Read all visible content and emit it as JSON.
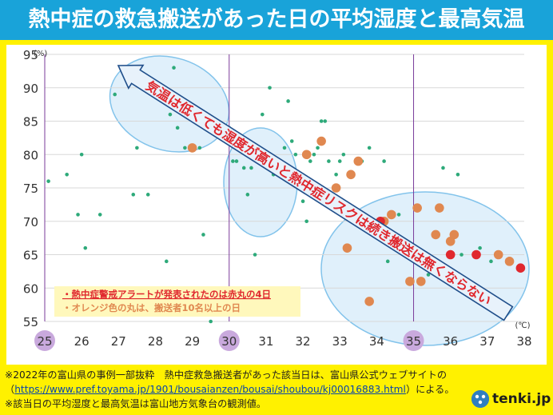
{
  "title": "熱中症の救急搬送があった日の平均湿度と最高気温",
  "chart_data": {
    "type": "scatter",
    "title": "熱中症の救急搬送があった日の平均湿度と最高気温",
    "xlabel": "(℃)",
    "ylabel": "(%)",
    "xlim": [
      25,
      38
    ],
    "ylim": [
      55,
      95
    ],
    "x_ticks": [
      "25",
      "26",
      "27",
      "28",
      "29",
      "30",
      "31",
      "32",
      "33",
      "34",
      "35",
      "36",
      "37",
      "38"
    ],
    "y_ticks": [
      "55",
      "60",
      "65",
      "70",
      "75",
      "80",
      "85",
      "90",
      "95"
    ],
    "highlighted_x_ticks": [
      "25",
      "30",
      "35"
    ],
    "vertical_lines_at": [
      30,
      35
    ],
    "series": [
      {
        "color": "#2eaa7a",
        "points": [
          [
            25.1,
            76
          ],
          [
            25.6,
            77
          ],
          [
            25.9,
            71
          ],
          [
            26.0,
            80
          ],
          [
            26.1,
            66
          ],
          [
            26.5,
            71
          ],
          [
            26.9,
            89
          ],
          [
            27.4,
            74
          ],
          [
            27.5,
            81
          ],
          [
            27.6,
            92
          ],
          [
            27.7,
            91
          ],
          [
            27.8,
            74
          ],
          [
            28.2,
            90
          ],
          [
            28.3,
            64
          ],
          [
            28.4,
            86
          ],
          [
            28.5,
            93
          ],
          [
            28.6,
            84
          ],
          [
            28.7,
            87
          ],
          [
            28.8,
            81
          ],
          [
            29.2,
            81
          ],
          [
            29.3,
            68
          ],
          [
            29.5,
            55
          ],
          [
            29.7,
            85
          ],
          [
            29.8,
            84
          ],
          [
            30.0,
            84
          ],
          [
            30.1,
            79
          ],
          [
            30.2,
            79
          ],
          [
            30.3,
            82
          ],
          [
            30.4,
            78
          ],
          [
            30.5,
            74
          ],
          [
            30.6,
            78
          ],
          [
            30.7,
            65
          ],
          [
            30.8,
            81
          ],
          [
            30.9,
            86
          ],
          [
            31.0,
            80
          ],
          [
            31.1,
            90
          ],
          [
            31.2,
            77
          ],
          [
            31.3,
            79
          ],
          [
            31.4,
            77
          ],
          [
            31.5,
            81
          ],
          [
            31.6,
            88
          ],
          [
            31.7,
            82
          ],
          [
            31.8,
            80
          ],
          [
            31.9,
            76
          ],
          [
            32.0,
            73
          ],
          [
            32.1,
            70
          ],
          [
            32.2,
            79
          ],
          [
            32.3,
            80
          ],
          [
            32.4,
            81
          ],
          [
            32.5,
            85
          ],
          [
            32.6,
            85
          ],
          [
            32.7,
            79
          ],
          [
            32.9,
            77
          ],
          [
            33.0,
            79
          ],
          [
            33.1,
            80
          ],
          [
            33.3,
            77
          ],
          [
            33.6,
            79
          ],
          [
            33.8,
            81
          ],
          [
            34.2,
            79
          ],
          [
            34.3,
            64
          ],
          [
            34.6,
            71
          ],
          [
            35.4,
            62
          ],
          [
            35.8,
            78
          ],
          [
            36.2,
            77
          ],
          [
            36.3,
            65
          ],
          [
            36.8,
            66
          ],
          [
            37.1,
            64
          ]
        ]
      },
      {
        "color": "#e08850",
        "points": [
          [
            29.0,
            81
          ],
          [
            32.1,
            80
          ],
          [
            32.5,
            82
          ],
          [
            32.9,
            75
          ],
          [
            33.2,
            66
          ],
          [
            33.3,
            77
          ],
          [
            33.5,
            79
          ],
          [
            33.8,
            58
          ],
          [
            34.2,
            70
          ],
          [
            34.4,
            71
          ],
          [
            34.9,
            61
          ],
          [
            35.1,
            72
          ],
          [
            35.2,
            61
          ],
          [
            35.6,
            68
          ],
          [
            35.7,
            72
          ],
          [
            36.0,
            67
          ],
          [
            36.1,
            68
          ],
          [
            36.9,
            58
          ],
          [
            37.2,
            57
          ],
          [
            37.3,
            65
          ],
          [
            37.6,
            64
          ]
        ]
      },
      {
        "color": "#e0282e",
        "points": [
          [
            34.1,
            70
          ],
          [
            36.0,
            65
          ],
          [
            36.7,
            65
          ],
          [
            37.9,
            63
          ]
        ]
      }
    ],
    "arrow_text": "気温は低くても湿度が高いと熱中症リスクは続き搬送は無くならない",
    "legend": {
      "line1": "・熱中症警戒アラートが発表されたのは赤丸の4日",
      "line2": "・オレンジ色の丸は、搬送者10名以上の日",
      "line1_color": "#e0282e",
      "line2_color": "#e08850"
    }
  },
  "footer": {
    "line1": "※2022年の富山県の事例一部抜粋　熱中症救急搬送者があった該当日は、富山県公式ウェブサイトの",
    "line2_prefix": "（",
    "line2_link": "https://www.pref.toyama.jp/1901/bousaianzen/bousai/shoubou/kj00016883.html",
    "line2_suffix": "）による。",
    "line3": "※該当日の平均湿度と最高気温は富山地方気象台の観測値。"
  },
  "logo": {
    "text": "tenki.jp",
    "icon": "tenki-logo-icon"
  },
  "colors": {
    "title_bar": "#19a3d9",
    "frame": "#fff100",
    "ellipse_fill": "#dff0fb",
    "ellipse_stroke": "#7cc0ea",
    "axis_circle": "#c9a9dd",
    "vertical_line": "#7a3b9a"
  }
}
